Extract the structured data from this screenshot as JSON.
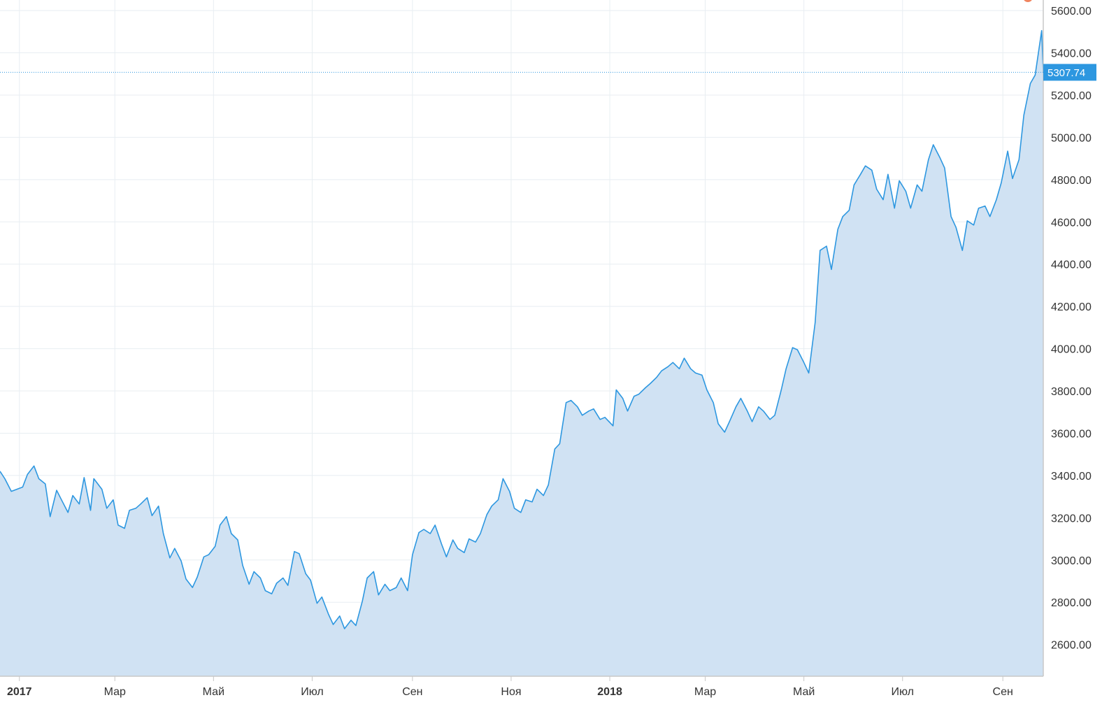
{
  "chart_data": {
    "type": "area",
    "title": "",
    "xlabel": "",
    "ylabel": "",
    "x_tick_labels": [
      {
        "label": "2017",
        "date": "2017-01-01",
        "year": true
      },
      {
        "label": "Мар",
        "date": "2017-03-01"
      },
      {
        "label": "Май",
        "date": "2017-05-01"
      },
      {
        "label": "Июл",
        "date": "2017-07-01"
      },
      {
        "label": "Сен",
        "date": "2017-09-01"
      },
      {
        "label": "Ноя",
        "date": "2017-11-01"
      },
      {
        "label": "2018",
        "date": "2018-01-01",
        "year": true
      },
      {
        "label": "Мар",
        "date": "2018-03-01"
      },
      {
        "label": "Май",
        "date": "2018-05-01"
      },
      {
        "label": "Июл",
        "date": "2018-07-01"
      },
      {
        "label": "Сен",
        "date": "2018-09-01"
      }
    ],
    "y_tick_labels": [
      "2600.00",
      "2800.00",
      "3000.00",
      "3200.00",
      "3400.00",
      "3600.00",
      "3800.00",
      "4000.00",
      "4200.00",
      "4400.00",
      "4600.00",
      "4800.00",
      "5000.00",
      "5200.00",
      "5400.00",
      "5600.00"
    ],
    "ylim": [
      2450,
      5650
    ],
    "xlim": [
      "2016-12-20",
      "2018-09-26"
    ],
    "grid": true,
    "y_axis_position": "right",
    "last_price": {
      "value": 5307.74,
      "label": "5307.74"
    },
    "series": [
      {
        "values": [
          [
            "2016-12-20",
            3420
          ],
          [
            "2016-12-23",
            3385
          ],
          [
            "2016-12-27",
            3325
          ],
          [
            "2017-01-03",
            3345
          ],
          [
            "2017-01-06",
            3405
          ],
          [
            "2017-01-10",
            3445
          ],
          [
            "2017-01-13",
            3385
          ],
          [
            "2017-01-17",
            3360
          ],
          [
            "2017-01-20",
            3205
          ],
          [
            "2017-01-24",
            3330
          ],
          [
            "2017-01-27",
            3285
          ],
          [
            "2017-01-31",
            3225
          ],
          [
            "2017-02-03",
            3305
          ],
          [
            "2017-02-07",
            3265
          ],
          [
            "2017-02-10",
            3390
          ],
          [
            "2017-02-14",
            3235
          ],
          [
            "2017-02-16",
            3385
          ],
          [
            "2017-02-21",
            3335
          ],
          [
            "2017-02-24",
            3245
          ],
          [
            "2017-02-28",
            3285
          ],
          [
            "2017-03-03",
            3165
          ],
          [
            "2017-03-07",
            3150
          ],
          [
            "2017-03-10",
            3235
          ],
          [
            "2017-03-14",
            3245
          ],
          [
            "2017-03-17",
            3265
          ],
          [
            "2017-03-21",
            3295
          ],
          [
            "2017-03-24",
            3210
          ],
          [
            "2017-03-28",
            3255
          ],
          [
            "2017-03-31",
            3125
          ],
          [
            "2017-04-04",
            3010
          ],
          [
            "2017-04-07",
            3055
          ],
          [
            "2017-04-11",
            2995
          ],
          [
            "2017-04-14",
            2910
          ],
          [
            "2017-04-18",
            2870
          ],
          [
            "2017-04-21",
            2920
          ],
          [
            "2017-04-25",
            3015
          ],
          [
            "2017-04-28",
            3025
          ],
          [
            "2017-05-02",
            3065
          ],
          [
            "2017-05-05",
            3165
          ],
          [
            "2017-05-09",
            3205
          ],
          [
            "2017-05-12",
            3125
          ],
          [
            "2017-05-16",
            3095
          ],
          [
            "2017-05-19",
            2975
          ],
          [
            "2017-05-23",
            2885
          ],
          [
            "2017-05-26",
            2945
          ],
          [
            "2017-05-30",
            2915
          ],
          [
            "2017-06-02",
            2855
          ],
          [
            "2017-06-06",
            2840
          ],
          [
            "2017-06-09",
            2890
          ],
          [
            "2017-06-13",
            2915
          ],
          [
            "2017-06-16",
            2880
          ],
          [
            "2017-06-20",
            3040
          ],
          [
            "2017-06-23",
            3030
          ],
          [
            "2017-06-27",
            2935
          ],
          [
            "2017-06-30",
            2905
          ],
          [
            "2017-07-04",
            2795
          ],
          [
            "2017-07-07",
            2825
          ],
          [
            "2017-07-11",
            2745
          ],
          [
            "2017-07-14",
            2695
          ],
          [
            "2017-07-18",
            2735
          ],
          [
            "2017-07-21",
            2675
          ],
          [
            "2017-07-25",
            2715
          ],
          [
            "2017-07-28",
            2690
          ],
          [
            "2017-08-01",
            2805
          ],
          [
            "2017-08-04",
            2915
          ],
          [
            "2017-08-08",
            2945
          ],
          [
            "2017-08-11",
            2835
          ],
          [
            "2017-08-15",
            2885
          ],
          [
            "2017-08-18",
            2855
          ],
          [
            "2017-08-22",
            2870
          ],
          [
            "2017-08-25",
            2915
          ],
          [
            "2017-08-29",
            2855
          ],
          [
            "2017-09-01",
            3025
          ],
          [
            "2017-09-05",
            3130
          ],
          [
            "2017-09-08",
            3145
          ],
          [
            "2017-09-12",
            3125
          ],
          [
            "2017-09-15",
            3165
          ],
          [
            "2017-09-19",
            3075
          ],
          [
            "2017-09-22",
            3015
          ],
          [
            "2017-09-26",
            3095
          ],
          [
            "2017-09-29",
            3055
          ],
          [
            "2017-10-03",
            3035
          ],
          [
            "2017-10-06",
            3100
          ],
          [
            "2017-10-10",
            3085
          ],
          [
            "2017-10-13",
            3125
          ],
          [
            "2017-10-17",
            3215
          ],
          [
            "2017-10-20",
            3255
          ],
          [
            "2017-10-24",
            3285
          ],
          [
            "2017-10-27",
            3385
          ],
          [
            "2017-10-31",
            3325
          ],
          [
            "2017-11-03",
            3245
          ],
          [
            "2017-11-07",
            3225
          ],
          [
            "2017-11-10",
            3285
          ],
          [
            "2017-11-14",
            3275
          ],
          [
            "2017-11-17",
            3335
          ],
          [
            "2017-11-21",
            3305
          ],
          [
            "2017-11-24",
            3355
          ],
          [
            "2017-11-28",
            3525
          ],
          [
            "2017-12-01",
            3550
          ],
          [
            "2017-12-05",
            3745
          ],
          [
            "2017-12-08",
            3755
          ],
          [
            "2017-12-12",
            3725
          ],
          [
            "2017-12-15",
            3685
          ],
          [
            "2017-12-19",
            3705
          ],
          [
            "2017-12-22",
            3715
          ],
          [
            "2017-12-26",
            3665
          ],
          [
            "2017-12-29",
            3675
          ],
          [
            "2018-01-03",
            3635
          ],
          [
            "2018-01-05",
            3805
          ],
          [
            "2018-01-09",
            3765
          ],
          [
            "2018-01-12",
            3705
          ],
          [
            "2018-01-16",
            3775
          ],
          [
            "2018-01-19",
            3785
          ],
          [
            "2018-01-23",
            3815
          ],
          [
            "2018-01-26",
            3835
          ],
          [
            "2018-01-30",
            3865
          ],
          [
            "2018-02-02",
            3895
          ],
          [
            "2018-02-06",
            3915
          ],
          [
            "2018-02-09",
            3935
          ],
          [
            "2018-02-13",
            3905
          ],
          [
            "2018-02-16",
            3955
          ],
          [
            "2018-02-20",
            3905
          ],
          [
            "2018-02-23",
            3885
          ],
          [
            "2018-02-27",
            3875
          ],
          [
            "2018-03-02",
            3805
          ],
          [
            "2018-03-06",
            3745
          ],
          [
            "2018-03-09",
            3645
          ],
          [
            "2018-03-13",
            3605
          ],
          [
            "2018-03-16",
            3655
          ],
          [
            "2018-03-20",
            3725
          ],
          [
            "2018-03-23",
            3765
          ],
          [
            "2018-03-27",
            3705
          ],
          [
            "2018-03-30",
            3655
          ],
          [
            "2018-04-03",
            3725
          ],
          [
            "2018-04-06",
            3705
          ],
          [
            "2018-04-10",
            3665
          ],
          [
            "2018-04-13",
            3685
          ],
          [
            "2018-04-17",
            3805
          ],
          [
            "2018-04-20",
            3905
          ],
          [
            "2018-04-24",
            4005
          ],
          [
            "2018-04-27",
            3995
          ],
          [
            "2018-05-01",
            3935
          ],
          [
            "2018-05-04",
            3885
          ],
          [
            "2018-05-08",
            4125
          ],
          [
            "2018-05-11",
            4465
          ],
          [
            "2018-05-15",
            4485
          ],
          [
            "2018-05-18",
            4375
          ],
          [
            "2018-05-22",
            4565
          ],
          [
            "2018-05-25",
            4625
          ],
          [
            "2018-05-29",
            4655
          ],
          [
            "2018-06-01",
            4775
          ],
          [
            "2018-06-05",
            4825
          ],
          [
            "2018-06-08",
            4865
          ],
          [
            "2018-06-12",
            4845
          ],
          [
            "2018-06-15",
            4755
          ],
          [
            "2018-06-19",
            4705
          ],
          [
            "2018-06-22",
            4825
          ],
          [
            "2018-06-26",
            4665
          ],
          [
            "2018-06-29",
            4795
          ],
          [
            "2018-07-03",
            4745
          ],
          [
            "2018-07-06",
            4665
          ],
          [
            "2018-07-10",
            4775
          ],
          [
            "2018-07-13",
            4745
          ],
          [
            "2018-07-17",
            4895
          ],
          [
            "2018-07-20",
            4965
          ],
          [
            "2018-07-24",
            4905
          ],
          [
            "2018-07-27",
            4855
          ],
          [
            "2018-07-31",
            4625
          ],
          [
            "2018-08-03",
            4575
          ],
          [
            "2018-08-07",
            4465
          ],
          [
            "2018-08-10",
            4605
          ],
          [
            "2018-08-14",
            4585
          ],
          [
            "2018-08-17",
            4665
          ],
          [
            "2018-08-21",
            4675
          ],
          [
            "2018-08-24",
            4625
          ],
          [
            "2018-08-28",
            4705
          ],
          [
            "2018-08-31",
            4785
          ],
          [
            "2018-09-04",
            4935
          ],
          [
            "2018-09-07",
            4805
          ],
          [
            "2018-09-11",
            4895
          ],
          [
            "2018-09-14",
            5105
          ],
          [
            "2018-09-18",
            5255
          ],
          [
            "2018-09-21",
            5295
          ],
          [
            "2018-09-25",
            5505
          ],
          [
            "2018-09-26",
            5307.74
          ]
        ]
      }
    ]
  }
}
